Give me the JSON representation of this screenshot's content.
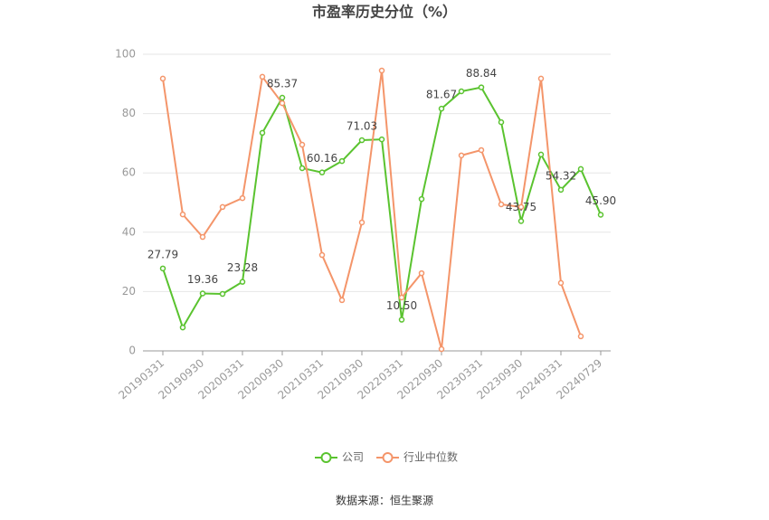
{
  "chart_data": {
    "type": "line",
    "title": "市盈率历史分位（%）",
    "categories": [
      "20190331",
      null,
      "20190930",
      null,
      "20200331",
      null,
      "20200930",
      null,
      "20210331",
      null,
      "20210930",
      null,
      "20220331",
      null,
      "20220930",
      null,
      "20230331",
      null,
      "20230930",
      null,
      "20240331",
      null,
      "20240729"
    ],
    "series": [
      {
        "name": "公司",
        "color": "#5ac32f",
        "values": [
          27.79,
          7.9,
          19.36,
          19.2,
          23.28,
          73.5,
          85.37,
          61.6,
          60.16,
          64.0,
          71.03,
          71.3,
          10.5,
          51.2,
          81.67,
          87.5,
          88.84,
          77.1,
          43.75,
          66.2,
          54.32,
          61.3,
          45.9
        ],
        "value_labels": [
          "27.79",
          null,
          "19.36",
          null,
          "23.28",
          null,
          "85.37",
          null,
          "60.16",
          null,
          "71.03",
          null,
          "10.50",
          null,
          "81.67",
          null,
          "88.84",
          null,
          "43.75",
          null,
          "54.32",
          null,
          "45.90"
        ]
      },
      {
        "name": "行业中位数",
        "color": "#f4956a",
        "values": [
          91.8,
          46.0,
          38.4,
          48.5,
          51.5,
          92.4,
          83.5,
          69.5,
          32.3,
          17.1,
          43.3,
          94.5,
          18.0,
          26.2,
          0.6,
          65.9,
          67.7,
          49.4,
          48.5,
          91.8,
          22.9,
          4.9,
          null
        ]
      }
    ],
    "ylim": [
      0,
      100
    ],
    "yticks": [
      0,
      20,
      40,
      60,
      80,
      100
    ],
    "grid": true,
    "source": "数据来源：恒生聚源"
  }
}
